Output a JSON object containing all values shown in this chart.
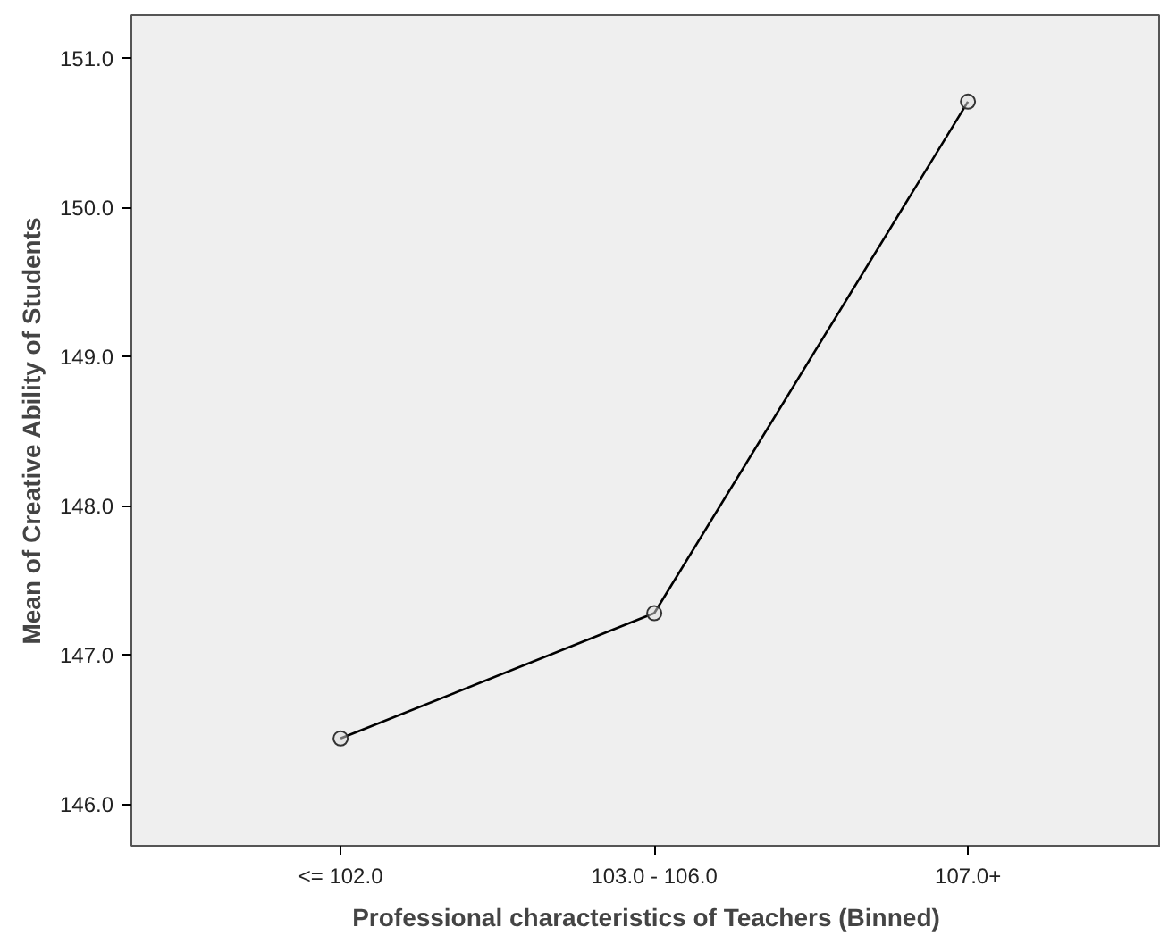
{
  "chart_data": {
    "type": "line",
    "xlabel": "Professional characteristics of Teachers (Binned)",
    "ylabel": "Mean of Creative Ability of Students",
    "categories": [
      "<= 102.0",
      "103.0 - 106.0",
      "107.0+"
    ],
    "series": [
      {
        "color": "#000000",
        "values": [
          146.44,
          147.28,
          150.71
        ]
      }
    ],
    "ylim": [
      145.72,
      151.29
    ],
    "yticks": [
      {
        "value": 146,
        "label": "146.0"
      },
      {
        "value": 147,
        "label": "147.0"
      },
      {
        "value": 148,
        "label": "148.0"
      },
      {
        "value": 149,
        "label": "149.0"
      },
      {
        "value": 150,
        "label": "150.0"
      },
      {
        "value": 151,
        "label": "151.0"
      }
    ],
    "grid": false,
    "marker": "circle",
    "line_style": "solid"
  }
}
